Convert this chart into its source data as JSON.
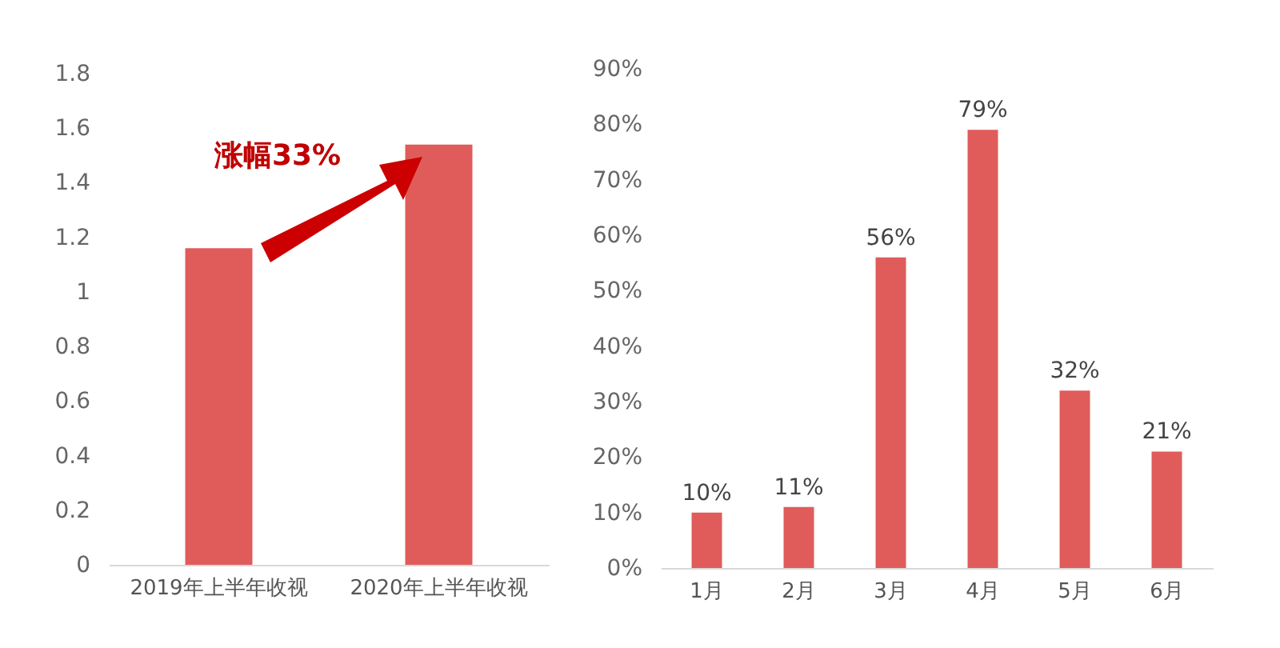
{
  "chart_data": [
    {
      "type": "bar",
      "categories": [
        "2019年上半年收视",
        "2020年上半年收视"
      ],
      "values": [
        1.16,
        1.54
      ],
      "color": "#e05c5a",
      "ylim": [
        0,
        1.8
      ],
      "yticks": [
        0,
        0.2,
        0.4,
        0.6,
        0.8,
        1,
        1.2,
        1.4,
        1.6,
        1.8
      ],
      "grid": false,
      "annotations": [
        "涨幅33%"
      ]
    },
    {
      "type": "bar",
      "categories": [
        "1月",
        "2月",
        "3月",
        "4月",
        "5月",
        "6月"
      ],
      "values": [
        10,
        11,
        56,
        79,
        32,
        21
      ],
      "color": "#e05c5a",
      "value_labels": [
        "10%",
        "11%",
        "56%",
        "79%",
        "32%",
        "21%"
      ],
      "ylim": [
        0,
        90
      ],
      "yticks": [
        {
          "value": 0,
          "label": "0%"
        },
        {
          "value": 10,
          "label": "10%"
        },
        {
          "value": 20,
          "label": "20%"
        },
        {
          "value": 30,
          "label": "30%"
        },
        {
          "value": 40,
          "label": "40%"
        },
        {
          "value": 50,
          "label": "50%"
        },
        {
          "value": 60,
          "label": "60%"
        },
        {
          "value": 70,
          "label": "70%"
        },
        {
          "value": 80,
          "label": "80%"
        },
        {
          "value": 90,
          "label": "90%"
        }
      ],
      "grid": false
    }
  ]
}
